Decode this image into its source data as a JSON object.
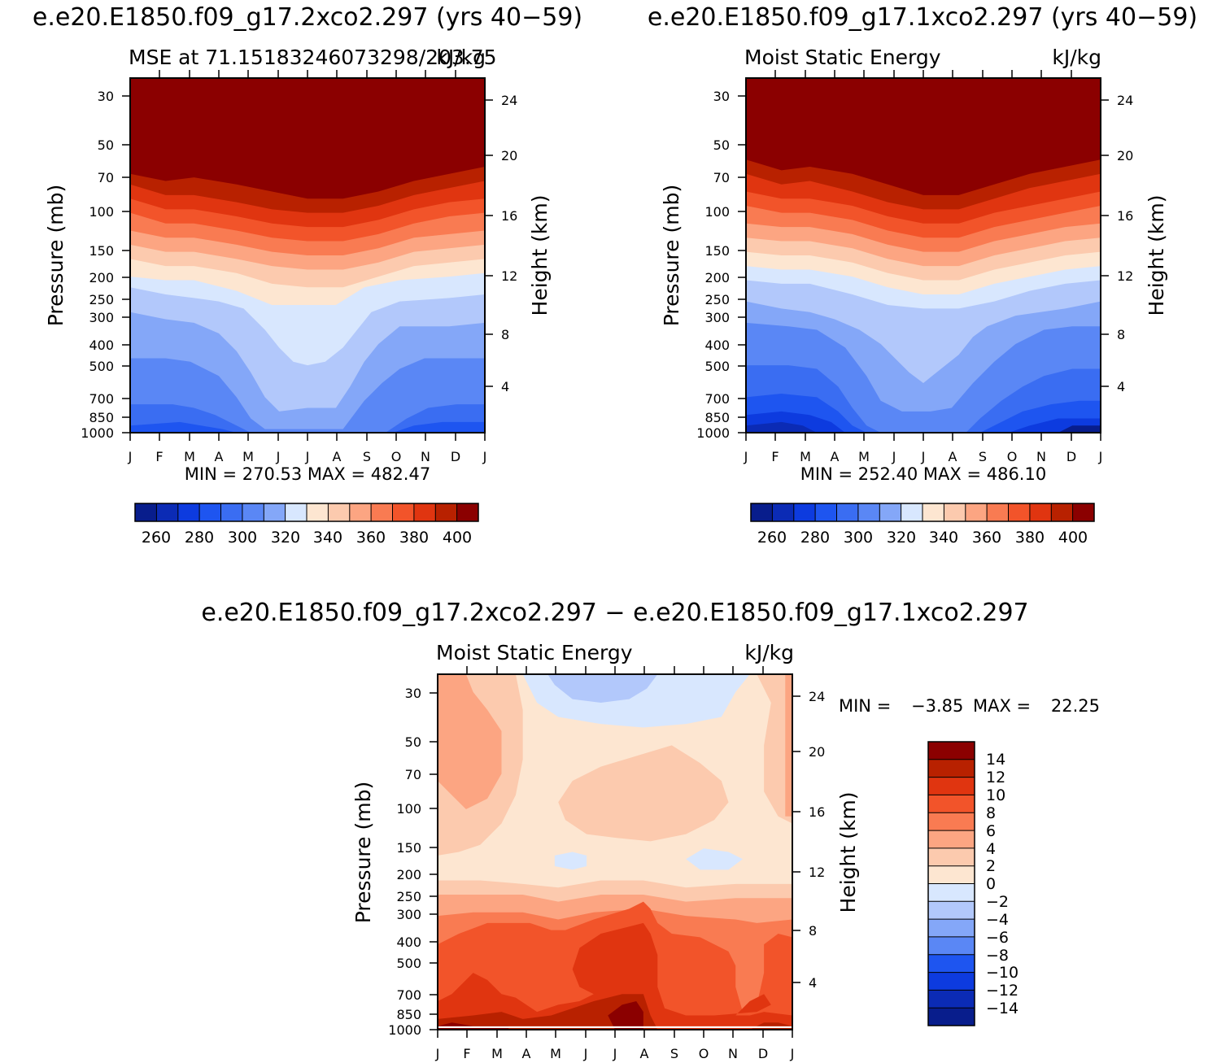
{
  "chart_data": [
    {
      "type": "contour",
      "title": "e.e20.E1850.f09_g17.2xco2.297 (yrs 40−59)",
      "subtitle_left": "MSE at 71.15183246073298/203.75",
      "subtitle_right": "kJ/kg",
      "ylabel_left": "Pressure  (mb)",
      "ylabel_right": "Height  (km)",
      "pressure_ticks": [
        "30",
        "50",
        "70",
        "100",
        "150",
        "200",
        "250",
        "300",
        "400",
        "500",
        "700",
        "850",
        "1000"
      ],
      "height_ticks": [
        "24",
        "20",
        "16",
        "12",
        "8",
        "4"
      ],
      "months": [
        "J",
        "F",
        "M",
        "A",
        "M",
        "J",
        "J",
        "A",
        "S",
        "O",
        "N",
        "D",
        "J"
      ],
      "min_max": "MIN = 270.53 MAX = 482.47",
      "colorbar_labels": [
        "260",
        "280",
        "300",
        "320",
        "340",
        "360",
        "380",
        "400"
      ],
      "levels": [
        250,
        260,
        270,
        280,
        290,
        300,
        310,
        320,
        330,
        340,
        350,
        360,
        370,
        380,
        390,
        400
      ]
    },
    {
      "type": "contour",
      "title": "e.e20.E1850.f09_g17.1xco2.297 (yrs 40−59)",
      "subtitle_left": "Moist Static Energy",
      "subtitle_right": "kJ/kg",
      "ylabel_left": "Pressure  (mb)",
      "ylabel_right": "Height  (km)",
      "pressure_ticks": [
        "30",
        "50",
        "70",
        "100",
        "150",
        "200",
        "250",
        "300",
        "400",
        "500",
        "700",
        "850",
        "1000"
      ],
      "height_ticks": [
        "24",
        "20",
        "16",
        "12",
        "8",
        "4"
      ],
      "months": [
        "J",
        "F",
        "M",
        "A",
        "M",
        "J",
        "J",
        "A",
        "S",
        "O",
        "N",
        "D",
        "J"
      ],
      "min_max": "MIN = 252.40 MAX = 486.10",
      "colorbar_labels": [
        "260",
        "280",
        "300",
        "320",
        "340",
        "360",
        "380",
        "400"
      ],
      "levels": [
        250,
        260,
        270,
        280,
        290,
        300,
        310,
        320,
        330,
        340,
        350,
        360,
        370,
        380,
        390,
        400
      ]
    },
    {
      "type": "contour",
      "title": "e.e20.E1850.f09_g17.2xco2.297 − e.e20.E1850.f09_g17.1xco2.297",
      "subtitle_left": "Moist Static Energy",
      "subtitle_right": "kJ/kg",
      "ylabel_left": "Pressure  (mb)",
      "ylabel_right": "Height  (km)",
      "pressure_ticks": [
        "30",
        "50",
        "70",
        "100",
        "150",
        "200",
        "250",
        "300",
        "400",
        "500",
        "700",
        "850",
        "1000"
      ],
      "height_ticks": [
        "24",
        "20",
        "16",
        "12",
        "8",
        "4"
      ],
      "months": [
        "J",
        "F",
        "M",
        "A",
        "M",
        "J",
        "J",
        "A",
        "S",
        "O",
        "N",
        "D",
        "J"
      ],
      "min_label": "MIN =",
      "min_value": "−3.85",
      "max_label": "MAX =",
      "max_value": "22.25",
      "colorbar_labels": [
        "14",
        "12",
        "10",
        "8",
        "6",
        "4",
        "2",
        "0",
        "−2",
        "−4",
        "−6",
        "−8",
        "−10",
        "−12",
        "−14"
      ],
      "levels": [
        -14,
        -12,
        -10,
        -8,
        -6,
        -4,
        -2,
        0,
        2,
        4,
        6,
        8,
        10,
        12,
        14
      ]
    }
  ],
  "colors": {
    "palette": [
      "#081d8c",
      "#0b2bb5",
      "#0d3bdf",
      "#1e55f0",
      "#3a6df2",
      "#5a87f5",
      "#84a7f8",
      "#b2c8fb",
      "#d8e7fe",
      "#fde6d1",
      "#fccaae",
      "#fca582",
      "#f97b52",
      "#f2542a",
      "#e03510",
      "#b82100",
      "#8b0000"
    ]
  }
}
